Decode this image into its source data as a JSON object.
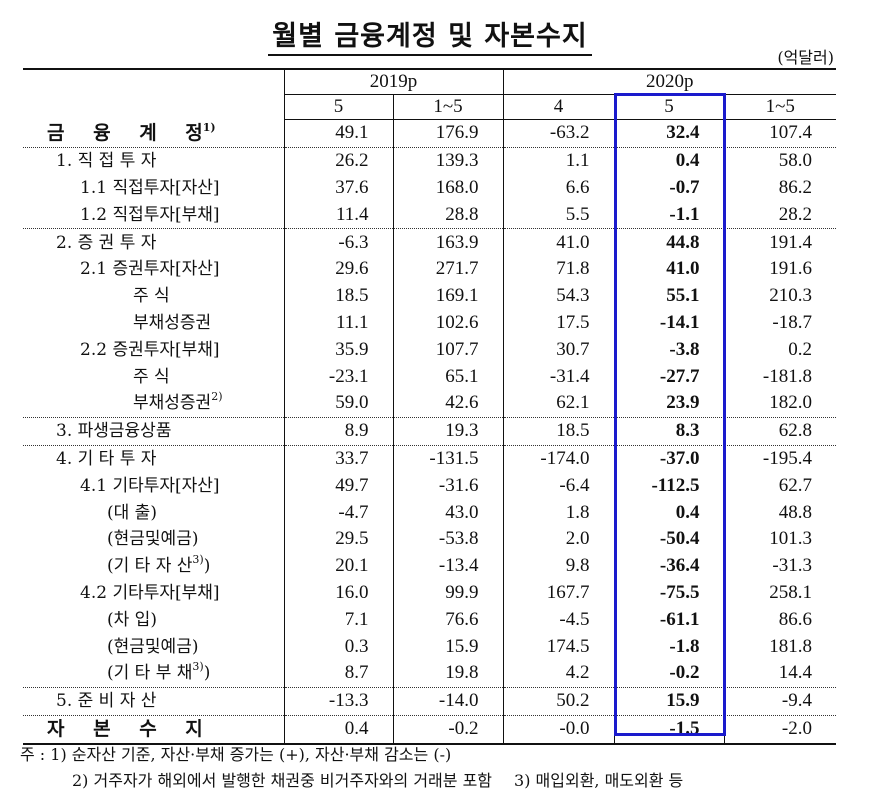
{
  "title": "월별 금융계정 및 자본수지",
  "unit": "(억달러)",
  "header": {
    "corner": "",
    "year_groups": [
      {
        "label": "2019p",
        "span": 2
      },
      {
        "label": "2020p",
        "span": 3
      }
    ],
    "periods": [
      "5",
      "1~5",
      "4",
      "5",
      "1~5"
    ]
  },
  "highlight": {
    "column_index": 3,
    "color": "#1a1acc"
  },
  "rows": [
    {
      "label": "금 융 계 정",
      "note": "1)",
      "values": [
        "49.1",
        "176.9",
        "-63.2",
        "32.4",
        "107.4"
      ]
    },
    {
      "label": "1. 직 접 투 자",
      "note": "",
      "values": [
        "26.2",
        "139.3",
        "1.1",
        "0.4",
        "58.0"
      ]
    },
    {
      "label": "1.1  직접투자[자산]",
      "note": "",
      "values": [
        "37.6",
        "168.0",
        "6.6",
        "-0.7",
        "86.2"
      ]
    },
    {
      "label": "1.2  직접투자[부채]",
      "note": "",
      "values": [
        "11.4",
        "28.8",
        "5.5",
        "-1.1",
        "28.2"
      ]
    },
    {
      "label": "2. 증 권 투 자",
      "note": "",
      "values": [
        "-6.3",
        "163.9",
        "41.0",
        "44.8",
        "191.4"
      ]
    },
    {
      "label": "2.1  증권투자[자산]",
      "note": "",
      "values": [
        "29.6",
        "271.7",
        "71.8",
        "41.0",
        "191.6"
      ]
    },
    {
      "label": "주   식",
      "note": "",
      "values": [
        "18.5",
        "169.1",
        "54.3",
        "55.1",
        "210.3"
      ]
    },
    {
      "label": "부채성증권",
      "note": "",
      "values": [
        "11.1",
        "102.6",
        "17.5",
        "-14.1",
        "-18.7"
      ]
    },
    {
      "label": "2.2  증권투자[부채]",
      "note": "",
      "values": [
        "35.9",
        "107.7",
        "30.7",
        "-3.8",
        "0.2"
      ]
    },
    {
      "label": "주   식",
      "note": "",
      "values": [
        "-23.1",
        "65.1",
        "-31.4",
        "-27.7",
        "-181.8"
      ]
    },
    {
      "label": "부채성증권",
      "note": "2)",
      "values": [
        "59.0",
        "42.6",
        "62.1",
        "23.9",
        "182.0"
      ]
    },
    {
      "label": "3.  파생금융상품",
      "note": "",
      "values": [
        "8.9",
        "19.3",
        "18.5",
        "8.3",
        "62.8"
      ]
    },
    {
      "label": "4. 기 타 투 자",
      "note": "",
      "values": [
        "33.7",
        "-131.5",
        "-174.0",
        "-37.0",
        "-195.4"
      ]
    },
    {
      "label": "4.1  기타투자[자산]",
      "note": "",
      "values": [
        "49.7",
        "-31.6",
        "-6.4",
        "-112.5",
        "62.7"
      ]
    },
    {
      "label": "(대        출)",
      "note": "",
      "values": [
        "-4.7",
        "43.0",
        "1.8",
        "0.4",
        "48.8"
      ]
    },
    {
      "label": "(현금및예금)",
      "note": "",
      "values": [
        "29.5",
        "-53.8",
        "2.0",
        "-50.4",
        "101.3"
      ]
    },
    {
      "label": "(기 타 자 산",
      "note": "3)",
      "suffix": ")",
      "values": [
        "20.1",
        "-13.4",
        "9.8",
        "-36.4",
        "-31.3"
      ]
    },
    {
      "label": "4.2  기타투자[부채]",
      "note": "",
      "values": [
        "16.0",
        "99.9",
        "167.7",
        "-75.5",
        "258.1"
      ]
    },
    {
      "label": "(차        입)",
      "note": "",
      "values": [
        "7.1",
        "76.6",
        "-4.5",
        "-61.1",
        "86.6"
      ]
    },
    {
      "label": "(현금및예금)",
      "note": "",
      "values": [
        "0.3",
        "15.9",
        "174.5",
        "-1.8",
        "181.8"
      ]
    },
    {
      "label": "(기 타 부 채",
      "note": "3)",
      "suffix": ")",
      "values": [
        "8.7",
        "19.8",
        "4.2",
        "-0.2",
        "14.4"
      ]
    },
    {
      "label": "5. 준 비 자 산",
      "note": "",
      "values": [
        "-13.3",
        "-14.0",
        "50.2",
        "15.9",
        "-9.4"
      ]
    },
    {
      "label": "자 본 수 지",
      "note": "",
      "values": [
        "0.4",
        "-0.2",
        "-0.0",
        "-1.5",
        "-2.0"
      ]
    }
  ],
  "notes": {
    "prefix": "주 :",
    "note1": "1) 순자산 기준, 자산·부채 증가는 (+), 자산·부채 감소는 (-)",
    "note2": "2) 거주자가 해외에서 발행한 채권중 비거주자와의 거래분 포함",
    "note3": "3) 매입외환, 매도외환 등"
  }
}
